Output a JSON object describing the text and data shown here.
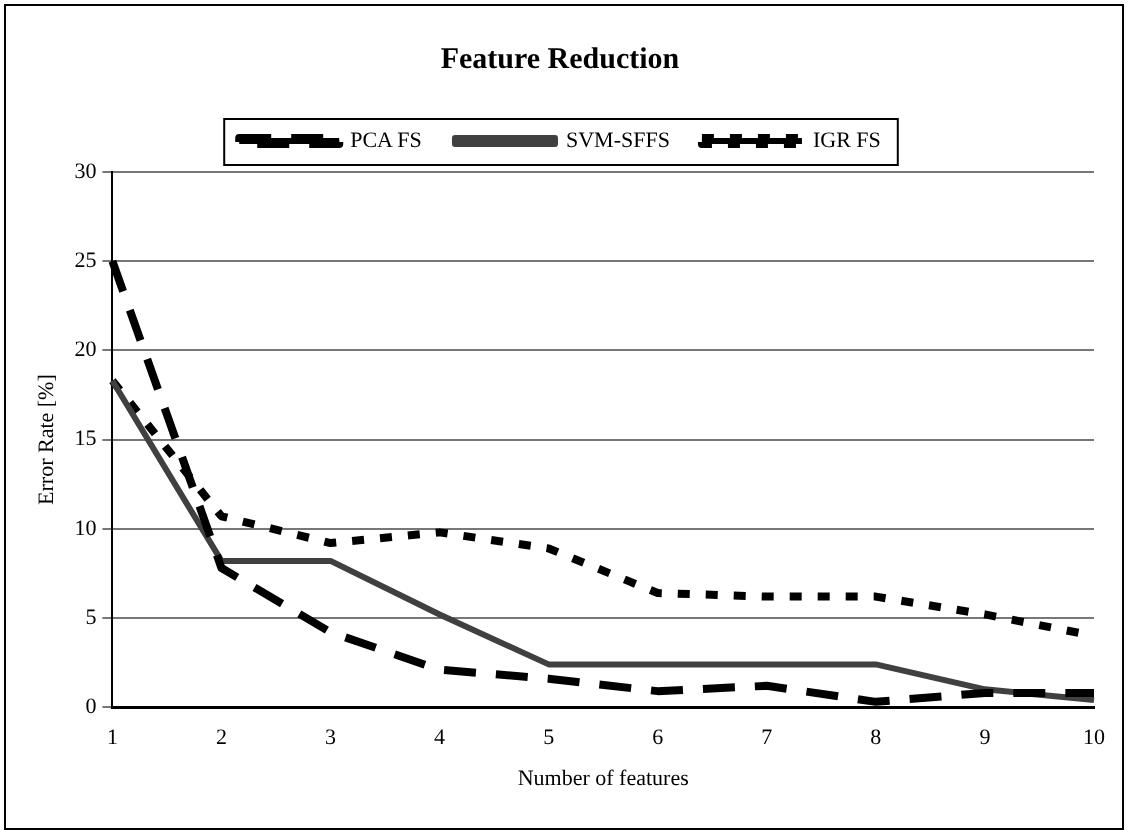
{
  "chart_data": {
    "type": "line",
    "title": "Feature Reduction",
    "xlabel": "Number of features",
    "ylabel": "Error Rate [%]",
    "categories": [
      "1",
      "2",
      "3",
      "4",
      "5",
      "6",
      "7",
      "8",
      "9",
      "10"
    ],
    "series": [
      {
        "name": "PCA FS",
        "color": "#000000",
        "line_style": "dashed",
        "values": [
          25,
          7.8,
          4.2,
          2.1,
          1.6,
          0.9,
          1.2,
          0.3,
          0.8,
          0.8
        ]
      },
      {
        "name": "SVM-SFFS",
        "color": "#404040",
        "line_style": "solid",
        "values": [
          18.3,
          8.2,
          8.2,
          5.2,
          2.4,
          2.4,
          2.4,
          2.4,
          1.0,
          0.4
        ]
      },
      {
        "name": "IGR FS",
        "color": "#000000",
        "line_style": "dotted",
        "values": [
          18.3,
          10.7,
          9.2,
          9.8,
          8.9,
          6.4,
          6.2,
          6.2,
          5.2,
          4.0
        ]
      }
    ],
    "ylim": [
      0,
      30
    ],
    "yticks": [
      0,
      5,
      10,
      15,
      20,
      25,
      30
    ],
    "grid": "y",
    "legend": "top",
    "marker": "none"
  }
}
